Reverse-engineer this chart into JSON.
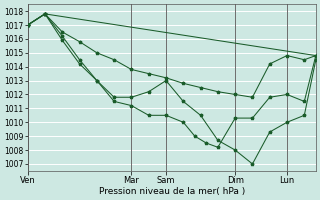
{
  "title": "",
  "xlabel": "Pression niveau de la mer( hPa )",
  "ylabel": "",
  "bg_color": "#cde8e2",
  "grid_color": "#ffffff",
  "line_color": "#1a5c2a",
  "ylim": [
    1006.5,
    1018.5
  ],
  "yticks": [
    1007,
    1008,
    1009,
    1010,
    1011,
    1012,
    1013,
    1014,
    1015,
    1016,
    1017,
    1018
  ],
  "xtick_labels": [
    "Ven",
    "Mar",
    "Sam",
    "Dim",
    "Lun"
  ],
  "xtick_positions": [
    0,
    36,
    48,
    72,
    90
  ],
  "vline_positions": [
    0,
    36,
    48,
    72,
    90
  ],
  "xmin": 0,
  "xmax": 100,
  "line1_x": [
    0,
    6,
    12,
    18,
    24,
    30,
    36,
    42,
    48,
    54,
    60,
    66,
    72,
    78,
    84,
    90,
    96,
    100
  ],
  "line1_y": [
    1017.0,
    1017.8,
    1015.9,
    1014.2,
    1013.0,
    1011.8,
    1011.8,
    1012.2,
    1013.0,
    1011.5,
    1010.5,
    1008.7,
    1008.0,
    1007.0,
    1009.3,
    1010.0,
    1010.5,
    1014.5
  ],
  "line2_x": [
    0,
    6,
    12,
    18,
    24,
    30,
    36,
    42,
    48,
    54,
    58,
    62,
    66,
    72,
    78,
    84,
    90,
    96,
    100
  ],
  "line2_y": [
    1017.0,
    1017.8,
    1016.2,
    1014.5,
    1013.0,
    1011.5,
    1011.2,
    1010.5,
    1010.5,
    1010.0,
    1009.0,
    1008.5,
    1008.2,
    1010.3,
    1010.3,
    1011.8,
    1012.0,
    1011.5,
    1014.8
  ],
  "line3_x": [
    0,
    6,
    100
  ],
  "line3_y": [
    1017.0,
    1017.8,
    1014.8
  ],
  "line4_x": [
    0,
    6,
    12,
    18,
    24,
    30,
    36,
    42,
    48,
    54,
    60,
    66,
    72,
    78,
    84,
    90,
    96,
    100
  ],
  "line4_y": [
    1017.0,
    1017.8,
    1016.5,
    1015.8,
    1015.0,
    1014.5,
    1013.8,
    1013.5,
    1013.2,
    1012.8,
    1012.5,
    1012.2,
    1012.0,
    1011.8,
    1014.2,
    1014.8,
    1014.5,
    1014.8
  ]
}
